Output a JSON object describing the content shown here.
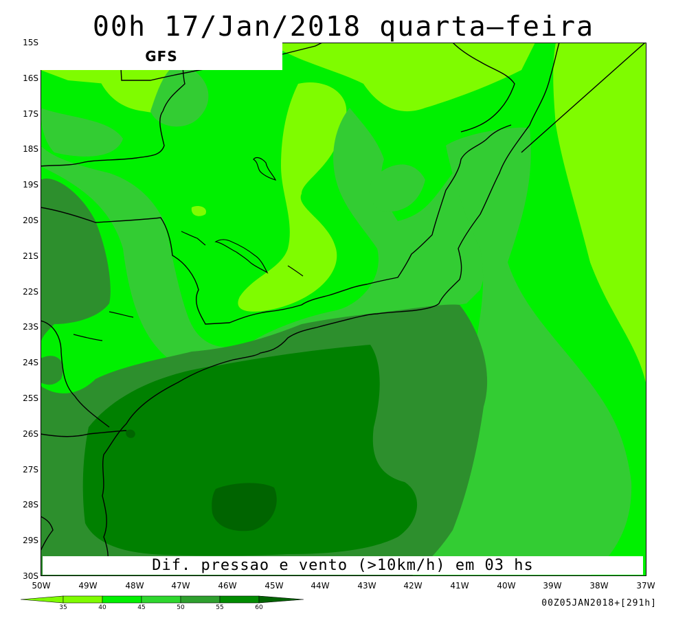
{
  "title": "00h 17/Jan/2018 quarta–feira",
  "model_label": "GFS",
  "caption": "Dif. pressao e vento (>10km/h) em 03 hs",
  "timestamp": "00Z05JAN2018+[291h]",
  "y_ticks": [
    "15S",
    "16S",
    "17S",
    "18S",
    "19S",
    "20S",
    "21S",
    "22S",
    "23S",
    "24S",
    "25S",
    "26S",
    "27S",
    "28S",
    "29S",
    "30S"
  ],
  "x_ticks": [
    "50W",
    "49W",
    "48W",
    "47W",
    "46W",
    "45W",
    "44W",
    "43W",
    "42W",
    "41W",
    "40W",
    "39W",
    "38W",
    "37W"
  ],
  "legend": {
    "levels": [
      "35",
      "40",
      "45",
      "50",
      "55",
      "60"
    ],
    "colors": [
      "#7ffc00",
      "#00f000",
      "#2ed72e",
      "#2ea02e",
      "#008c00",
      "#006400"
    ]
  },
  "map_colors": {
    "lightest": "#7ffc00",
    "light": "#00f000",
    "medium": "#33cc33",
    "dark": "#2d8f2d",
    "darker": "#008000",
    "darkest": "#006400"
  }
}
